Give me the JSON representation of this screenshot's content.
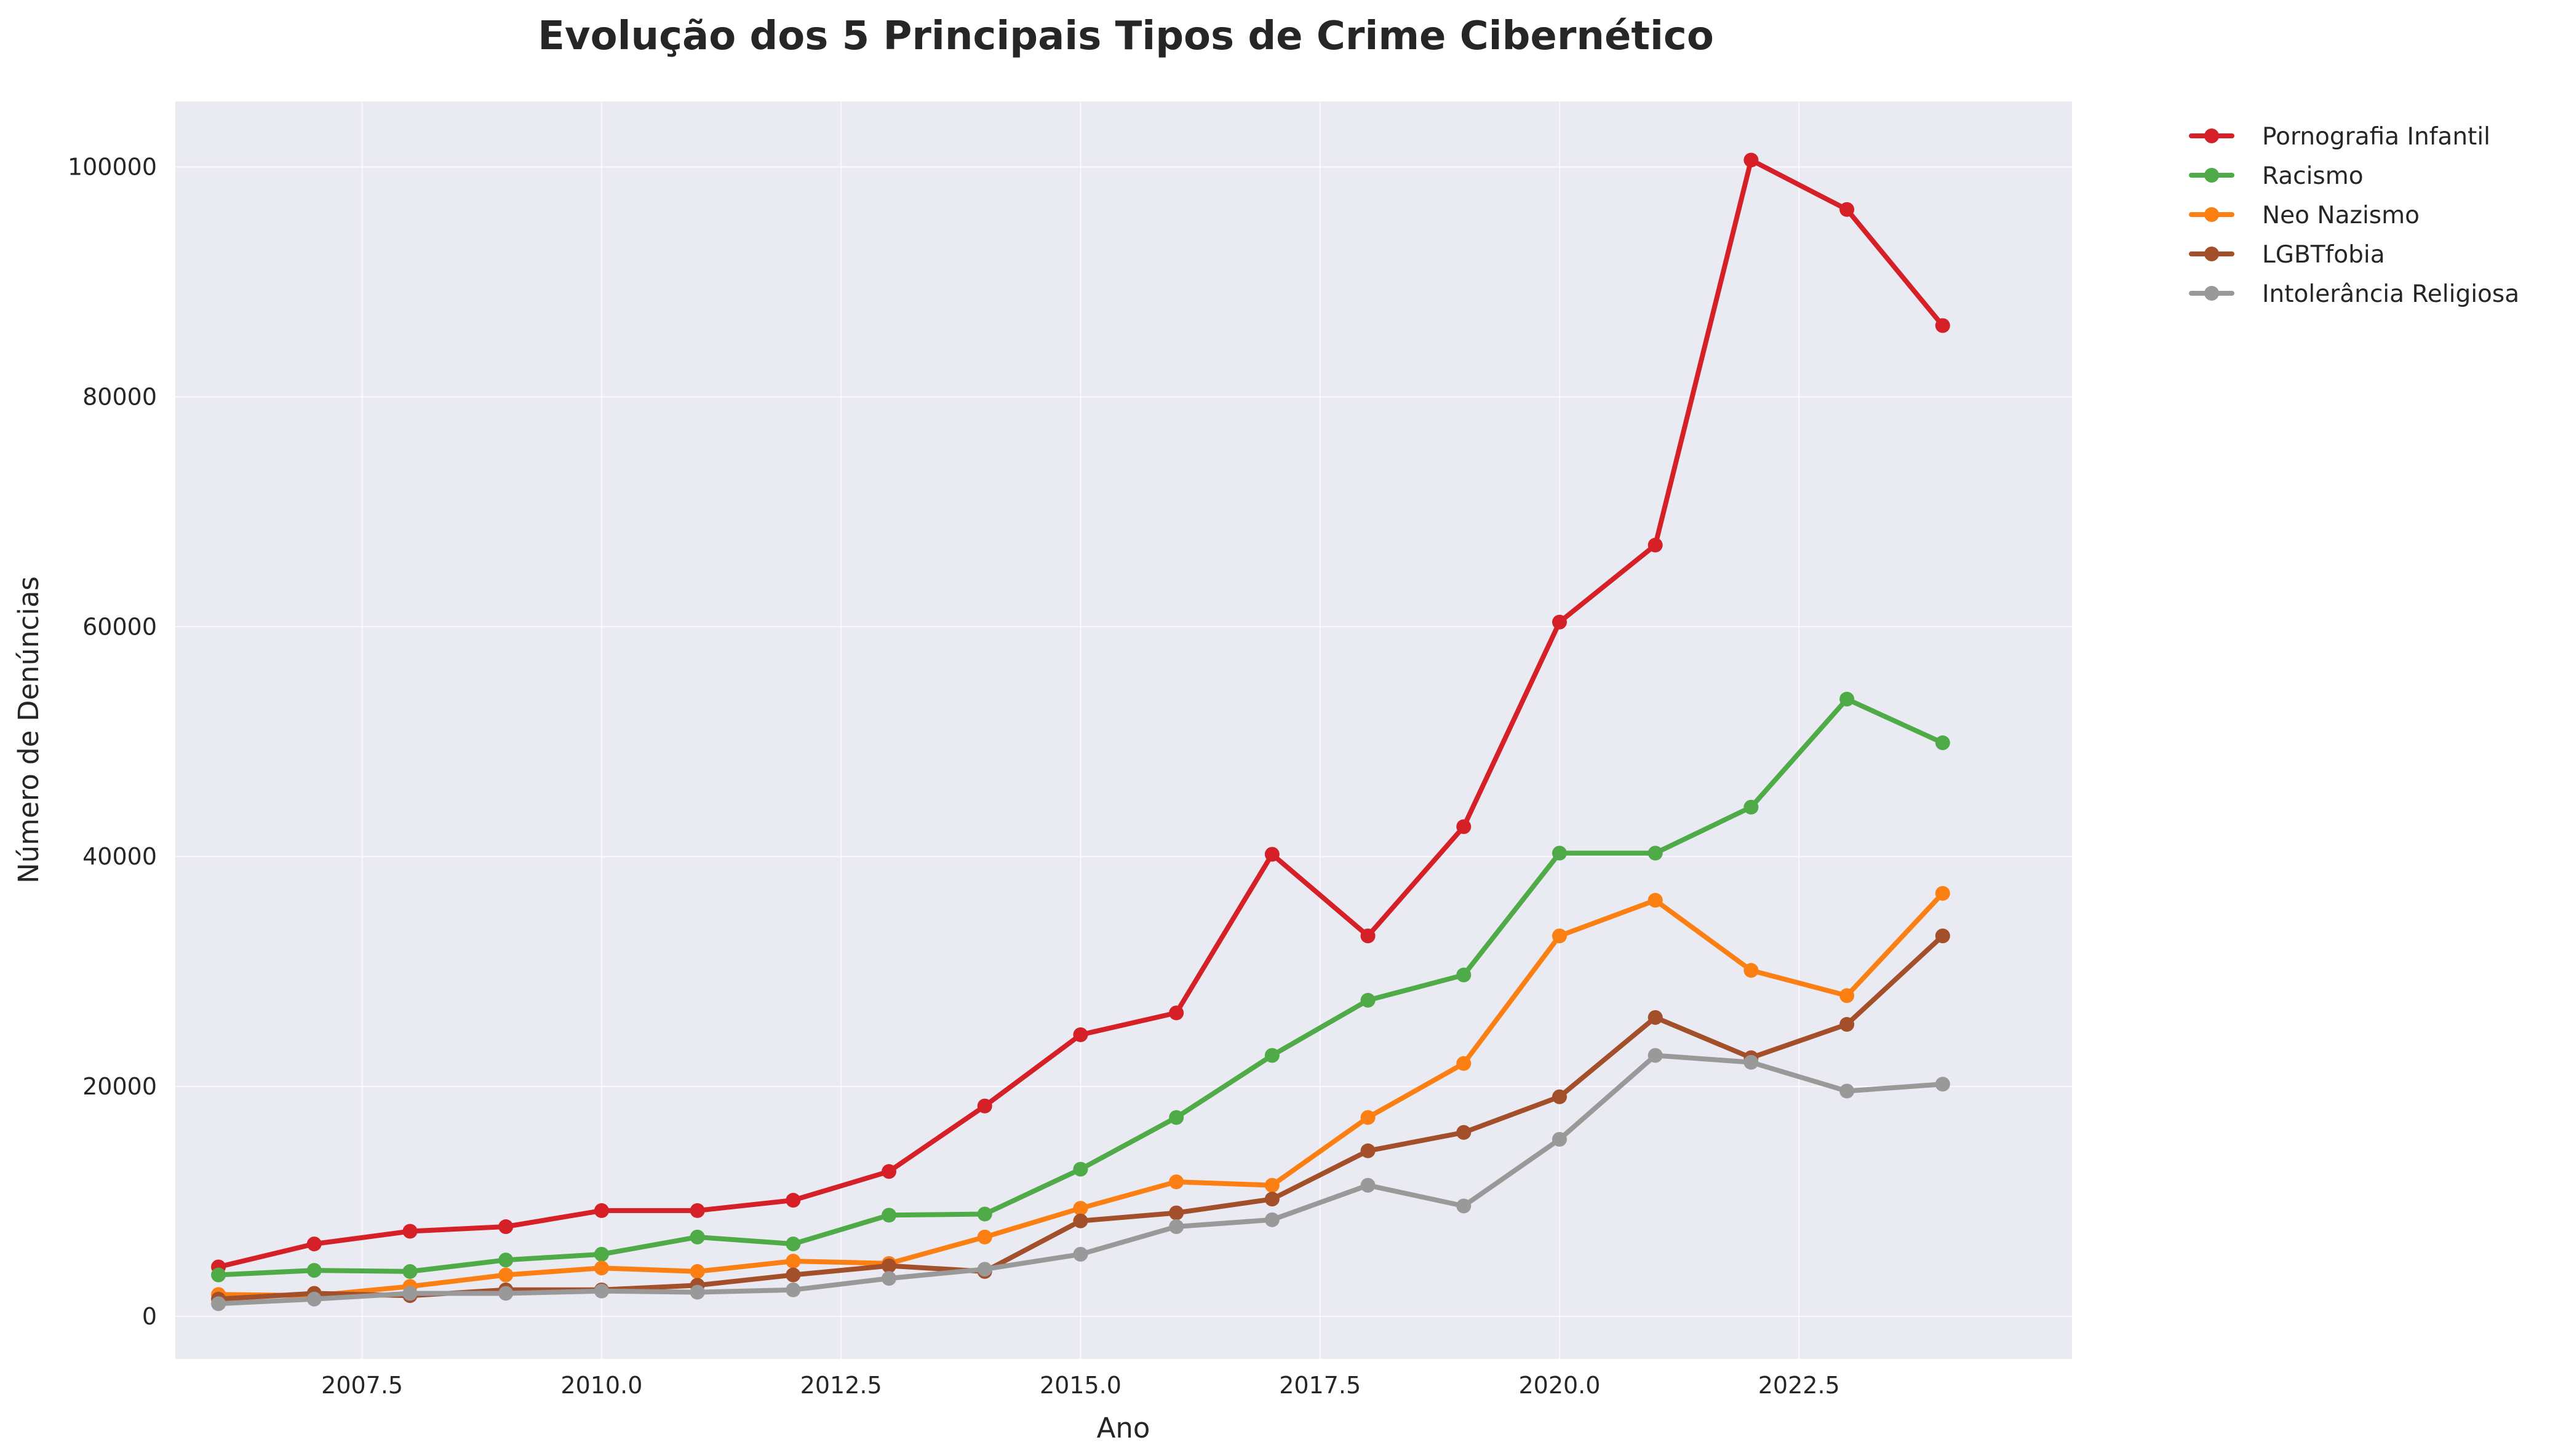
{
  "chart_data": {
    "type": "line",
    "title": "Evolução dos 5 Principais Tipos de Crime Cibernético",
    "xlabel": "Ano",
    "ylabel": "Número de Denúncias",
    "xlim": [
      2005.55,
      2025.35
    ],
    "ylim": [
      -3700,
      105700
    ],
    "xticks": [
      2007.5,
      2010.0,
      2012.5,
      2015.0,
      2017.5,
      2020.0,
      2022.5
    ],
    "xtick_labels": [
      "2007.5",
      "2010.0",
      "2012.5",
      "2015.0",
      "2017.5",
      "2020.0",
      "2022.5"
    ],
    "yticks": [
      0,
      20000,
      40000,
      60000,
      80000,
      100000
    ],
    "ytick_labels": [
      "0",
      "20000",
      "40000",
      "60000",
      "80000",
      "100000"
    ],
    "grid": true,
    "legend_position": "outside top-right",
    "x": [
      2006,
      2007,
      2008,
      2009,
      2010,
      2011,
      2012,
      2013,
      2014,
      2015,
      2016,
      2017,
      2018,
      2019,
      2020,
      2021,
      2022,
      2023,
      2024
    ],
    "series": [
      {
        "name": "Pornografia Infantil",
        "color": "#d62027",
        "values": [
          4300,
          6300,
          7400,
          7800,
          9200,
          9200,
          10100,
          12600,
          18300,
          24500,
          26400,
          40200,
          33100,
          42600,
          60400,
          67100,
          100600,
          96300,
          86200
        ]
      },
      {
        "name": "Racismo",
        "color": "#4eab47",
        "values": [
          3600,
          4000,
          3900,
          4900,
          5400,
          6900,
          6300,
          8800,
          8900,
          12800,
          17300,
          22700,
          27500,
          29700,
          40300,
          40300,
          44300,
          53700,
          49900
        ]
      },
      {
        "name": "Neo Nazismo",
        "color": "#fb7f12",
        "values": [
          1900,
          1800,
          2600,
          3600,
          4200,
          3900,
          4800,
          4600,
          6900,
          9400,
          11700,
          11400,
          17300,
          22000,
          33100,
          36200,
          30100,
          27900,
          36800
        ]
      },
      {
        "name": "LGBTfobia",
        "color": "#a24f2a",
        "values": [
          1500,
          2000,
          1800,
          2300,
          2300,
          2700,
          3600,
          4400,
          3900,
          8300,
          9000,
          10200,
          14400,
          16000,
          19100,
          26000,
          22500,
          25400,
          33100
        ]
      },
      {
        "name": "Intolerância Religiosa",
        "color": "#999999",
        "values": [
          1100,
          1500,
          2000,
          2000,
          2200,
          2100,
          2300,
          3300,
          4100,
          5400,
          7800,
          8400,
          11400,
          9600,
          15400,
          22700,
          22100,
          19600,
          20200
        ]
      }
    ]
  }
}
